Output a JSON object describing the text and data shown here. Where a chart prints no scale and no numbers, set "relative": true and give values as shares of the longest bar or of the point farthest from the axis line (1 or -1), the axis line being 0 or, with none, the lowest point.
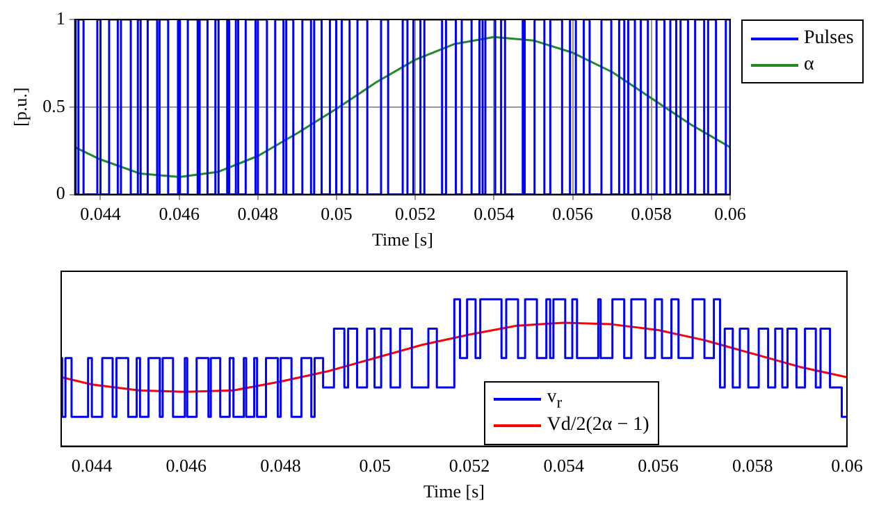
{
  "chart_data": [
    {
      "type": "step",
      "ylabel": "[p.u.]",
      "xlabel": "Time [s]",
      "xlim": [
        0.04335,
        0.06
      ],
      "xticks": [
        0.044,
        0.046,
        0.048,
        0.05,
        0.052,
        0.054,
        0.056,
        0.058,
        0.06
      ],
      "ylim": [
        0,
        1
      ],
      "yticks": [
        0,
        0.5,
        1
      ],
      "grid": true,
      "legend": "right",
      "x": [
        0.04335,
        0.04337,
        0.04344,
        0.04357,
        0.04392,
        0.044,
        0.04422,
        0.04444,
        0.04452,
        0.04477,
        0.04495,
        0.04502,
        0.0452,
        0.04544,
        0.0455,
        0.04572,
        0.04597,
        0.04602,
        0.04622,
        0.04647,
        0.04652,
        0.04672,
        0.04692,
        0.047,
        0.04722,
        0.04727,
        0.04744,
        0.0475,
        0.04769,
        0.04794,
        0.048,
        0.04823,
        0.04844,
        0.04865,
        0.04872,
        0.0489,
        0.04913,
        0.04935,
        0.04943,
        0.04962,
        0.04983,
        0.04999,
        0.05013,
        0.05033,
        0.05053,
        0.05078,
        0.05113,
        0.05131,
        0.05168,
        0.0518,
        0.05195,
        0.05213,
        0.05223,
        0.05268,
        0.05278,
        0.05303,
        0.05318,
        0.05343,
        0.05363,
        0.05371,
        0.05378,
        0.05403,
        0.05418,
        0.05428,
        0.05473,
        0.05478,
        0.05503,
        0.05528,
        0.05543,
        0.05573,
        0.05593,
        0.05608,
        0.05628,
        0.05643,
        0.05673,
        0.05698,
        0.05718,
        0.05731,
        0.05741,
        0.05758,
        0.05773,
        0.05791,
        0.05813,
        0.05833,
        0.05848,
        0.05863,
        0.05874,
        0.05893,
        0.05911,
        0.05934,
        0.05944,
        0.05964,
        0.05989,
        0.06
      ],
      "series": [
        {
          "name": "Pulses",
          "color": "#0000ff",
          "values": [
            1,
            0,
            1,
            0,
            1,
            0,
            1,
            0,
            1,
            0,
            1,
            0,
            1,
            0,
            1,
            0,
            1,
            0,
            1,
            0,
            1,
            0,
            1,
            0,
            1,
            0,
            1,
            0,
            1,
            0,
            1,
            0,
            1,
            0,
            1,
            0,
            1,
            0,
            1,
            0,
            1,
            0,
            1,
            0,
            1,
            0,
            1,
            0,
            1,
            0,
            1,
            0,
            1,
            0,
            1,
            0,
            1,
            0,
            1,
            0,
            1,
            0,
            1,
            0,
            1,
            0,
            1,
            0,
            1,
            0,
            1,
            0,
            1,
            0,
            1,
            0,
            1,
            0,
            1,
            0,
            1,
            0,
            1,
            0,
            1,
            0,
            1,
            0,
            1,
            0,
            1,
            0,
            1,
            0
          ]
        },
        {
          "name": "α",
          "type": "line",
          "color": "#228b22",
          "x": [
            0.04335,
            0.044,
            0.045,
            0.046,
            0.047,
            0.048,
            0.049,
            0.05,
            0.051,
            0.052,
            0.053,
            0.054,
            0.055,
            0.056,
            0.057,
            0.058,
            0.059,
            0.06
          ],
          "values": [
            0.27,
            0.2,
            0.12,
            0.1,
            0.13,
            0.22,
            0.35,
            0.49,
            0.64,
            0.77,
            0.86,
            0.9,
            0.88,
            0.81,
            0.7,
            0.55,
            0.4,
            0.27
          ]
        }
      ]
    },
    {
      "type": "step",
      "xlabel": "Time [s]",
      "xlim": [
        0.04335,
        0.06
      ],
      "xticks": [
        0.044,
        0.046,
        0.048,
        0.05,
        0.052,
        0.054,
        0.056,
        0.058,
        0.06
      ],
      "relative": true,
      "tick_labels": "x",
      "legend": "bottom",
      "x": [
        0.04335,
        0.04337,
        0.04344,
        0.04357,
        0.04392,
        0.044,
        0.04422,
        0.04444,
        0.04452,
        0.04477,
        0.04495,
        0.04502,
        0.0452,
        0.04544,
        0.0455,
        0.04572,
        0.04597,
        0.04602,
        0.04622,
        0.04647,
        0.04652,
        0.04672,
        0.04692,
        0.047,
        0.04722,
        0.04727,
        0.04744,
        0.0475,
        0.04769,
        0.04794,
        0.048,
        0.04823,
        0.04844,
        0.04865,
        0.04872,
        0.0489,
        0.04913,
        0.04935,
        0.04943,
        0.04962,
        0.04983,
        0.04999,
        0.05013,
        0.05033,
        0.05053,
        0.05078,
        0.05113,
        0.05131,
        0.05168,
        0.0518,
        0.05195,
        0.05213,
        0.05223,
        0.05268,
        0.05278,
        0.05303,
        0.05318,
        0.05343,
        0.05363,
        0.05371,
        0.05378,
        0.05403,
        0.05418,
        0.05428,
        0.05473,
        0.05478,
        0.05503,
        0.05528,
        0.05543,
        0.05573,
        0.05593,
        0.05608,
        0.05628,
        0.05643,
        0.05673,
        0.05698,
        0.05718,
        0.05731,
        0.05741,
        0.05758,
        0.05773,
        0.05791,
        0.05813,
        0.05833,
        0.05848,
        0.05863,
        0.05874,
        0.05893,
        0.05911,
        0.05934,
        0.05944,
        0.05964,
        0.05989,
        0.06
      ],
      "series": [
        {
          "name": "v$_{r}$",
          "color": "#0000ff",
          "values": [
            0.6,
            0.2,
            0.6,
            0.2,
            0.6,
            0.2,
            0.6,
            0.2,
            0.6,
            0.2,
            0.6,
            0.2,
            0.6,
            0.2,
            0.6,
            0.2,
            0.6,
            0.2,
            0.6,
            0.2,
            0.6,
            0.2,
            0.6,
            0.2,
            0.6,
            0.2,
            0.6,
            0.2,
            0.6,
            0.2,
            0.6,
            0.2,
            0.6,
            0.2,
            0.6,
            0.4,
            0.8,
            0.4,
            0.8,
            0.4,
            0.8,
            0.4,
            0.8,
            0.4,
            0.8,
            0.4,
            0.8,
            0.4,
            1,
            0.6,
            1,
            0.6,
            1,
            0.6,
            1,
            0.6,
            1,
            0.6,
            1,
            0.6,
            1,
            0.6,
            1,
            0.6,
            1,
            0.6,
            1,
            0.6,
            1,
            0.6,
            1,
            0.6,
            1,
            0.6,
            1,
            0.6,
            1,
            0.4,
            0.8,
            0.4,
            0.8,
            0.4,
            0.8,
            0.4,
            0.8,
            0.4,
            0.8,
            0.4,
            0.8,
            0.4,
            0.8,
            0.4,
            0.2,
            0.2
          ]
        },
        {
          "name": "Vd/2(2α − 1)",
          "type": "line",
          "color": "#ff0000",
          "x": [
            0.04335,
            0.044,
            0.045,
            0.046,
            0.047,
            0.048,
            0.049,
            0.05,
            0.051,
            0.052,
            0.053,
            0.054,
            0.055,
            0.056,
            0.057,
            0.058,
            0.059,
            0.06
          ],
          "values": [
            0.47,
            0.42,
            0.38,
            0.37,
            0.38,
            0.44,
            0.51,
            0.6,
            0.69,
            0.76,
            0.82,
            0.84,
            0.83,
            0.79,
            0.72,
            0.63,
            0.54,
            0.47
          ]
        }
      ]
    }
  ]
}
